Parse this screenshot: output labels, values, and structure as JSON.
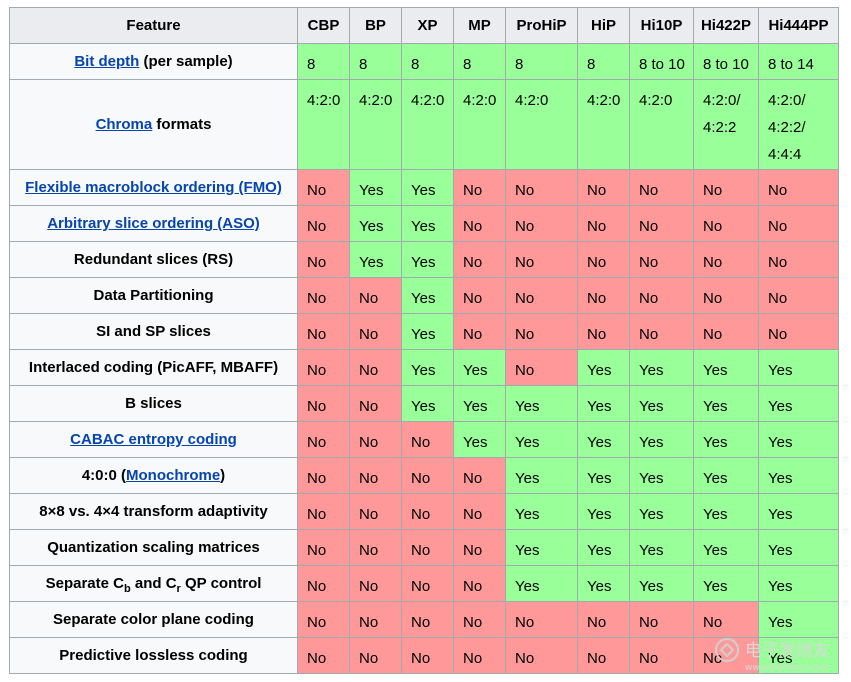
{
  "header": {
    "feature": "Feature",
    "profiles": [
      "CBP",
      "BP",
      "XP",
      "MP",
      "ProHiP",
      "HiP",
      "Hi10P",
      "Hi422P",
      "Hi444PP"
    ]
  },
  "rows": [
    {
      "label_link": "Bit depth",
      "label_rest": " (per sample)",
      "values": [
        "8",
        "8",
        "8",
        "8",
        "8",
        "8",
        "8 to 10",
        "8 to 10",
        "8 to 14"
      ]
    },
    {
      "label_link": "Chroma",
      "label_rest": " formats",
      "values": [
        "4:2:0",
        "4:2:0",
        "4:2:0",
        "4:2:0",
        "4:2:0",
        "4:2:0",
        "4:2:0",
        "4:2:0/\n4:2:2",
        "4:2:0/\n4:2:2/\n4:4:4"
      ]
    },
    {
      "label_link": "Flexible macroblock ordering (FMO)",
      "label_rest": "",
      "values": [
        "No",
        "Yes",
        "Yes",
        "No",
        "No",
        "No",
        "No",
        "No",
        "No"
      ]
    },
    {
      "label_link": "Arbitrary slice ordering (ASO)",
      "label_rest": "",
      "values": [
        "No",
        "Yes",
        "Yes",
        "No",
        "No",
        "No",
        "No",
        "No",
        "No"
      ]
    },
    {
      "label_text": "Redundant slices (RS)",
      "values": [
        "No",
        "Yes",
        "Yes",
        "No",
        "No",
        "No",
        "No",
        "No",
        "No"
      ]
    },
    {
      "label_text": "Data Partitioning",
      "values": [
        "No",
        "No",
        "Yes",
        "No",
        "No",
        "No",
        "No",
        "No",
        "No"
      ]
    },
    {
      "label_text": "SI and SP slices",
      "values": [
        "No",
        "No",
        "Yes",
        "No",
        "No",
        "No",
        "No",
        "No",
        "No"
      ]
    },
    {
      "label_text": "Interlaced coding (PicAFF, MBAFF)",
      "values": [
        "No",
        "No",
        "Yes",
        "Yes",
        "No",
        "Yes",
        "Yes",
        "Yes",
        "Yes"
      ]
    },
    {
      "label_text": "B slices",
      "values": [
        "No",
        "No",
        "Yes",
        "Yes",
        "Yes",
        "Yes",
        "Yes",
        "Yes",
        "Yes"
      ]
    },
    {
      "label_link": "CABAC entropy coding",
      "label_rest": "",
      "values": [
        "No",
        "No",
        "No",
        "Yes",
        "Yes",
        "Yes",
        "Yes",
        "Yes",
        "Yes"
      ]
    },
    {
      "label_pre": "4:0:0 (",
      "label_link": "Monochrome",
      "label_rest": ")",
      "values": [
        "No",
        "No",
        "No",
        "No",
        "Yes",
        "Yes",
        "Yes",
        "Yes",
        "Yes"
      ]
    },
    {
      "label_text": "8×8 vs. 4×4 transform adaptivity",
      "values": [
        "No",
        "No",
        "No",
        "No",
        "Yes",
        "Yes",
        "Yes",
        "Yes",
        "Yes"
      ]
    },
    {
      "label_text": "Quantization scaling matrices",
      "values": [
        "No",
        "No",
        "No",
        "No",
        "Yes",
        "Yes",
        "Yes",
        "Yes",
        "Yes"
      ]
    },
    {
      "label_sub": [
        "Separate C",
        "b",
        " and C",
        "r",
        " QP control"
      ],
      "values": [
        "No",
        "No",
        "No",
        "No",
        "Yes",
        "Yes",
        "Yes",
        "Yes",
        "Yes"
      ]
    },
    {
      "label_text": "Separate color plane coding",
      "values": [
        "No",
        "No",
        "No",
        "No",
        "No",
        "No",
        "No",
        "No",
        "Yes"
      ]
    },
    {
      "label_text": "Predictive lossless coding",
      "values": [
        "No",
        "No",
        "No",
        "No",
        "No",
        "No",
        "No",
        "No",
        "Yes"
      ]
    }
  ],
  "colors": {
    "yes": "#99ff99",
    "no": "#ff9999",
    "link": "#0645ad"
  },
  "watermark": {
    "text": "电子发烧友",
    "url": "www.elecfans.com"
  }
}
